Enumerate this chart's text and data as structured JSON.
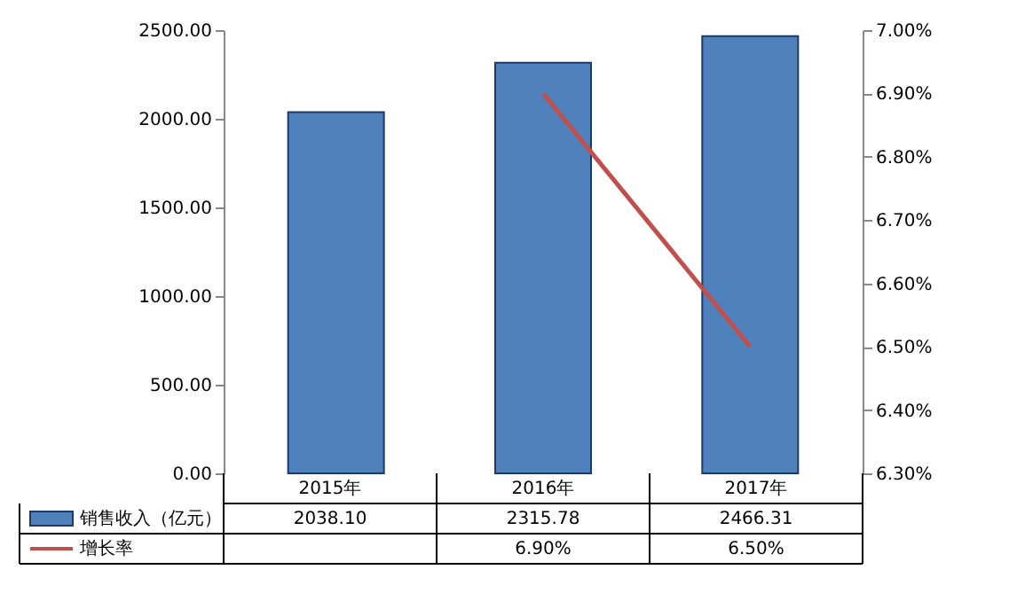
{
  "chart_data": {
    "type": "bar",
    "categories": [
      "2015年",
      "2016年",
      "2017年"
    ],
    "series": [
      {
        "name": "销售收入（亿元）",
        "color": "#4f81bd",
        "values": [
          2038.1,
          2315.78,
          2466.31
        ],
        "value_labels": [
          "2038.10",
          "2315.78",
          "2466.31"
        ]
      },
      {
        "name": "增长率",
        "type": "line",
        "axis": "y2",
        "color": "#c0504d",
        "values": [
          null,
          6.9,
          6.5
        ],
        "value_labels": [
          null,
          "6.90%",
          "6.50%"
        ]
      }
    ],
    "ylim": [
      0,
      2500
    ],
    "yticks": [
      {
        "value": 0,
        "label": "0.00"
      },
      {
        "value": 500,
        "label": "500.00"
      },
      {
        "value": 1000,
        "label": "1000.00"
      },
      {
        "value": 1500,
        "label": "1500.00"
      },
      {
        "value": 2000,
        "label": "2000.00"
      },
      {
        "value": 2500,
        "label": "2500.00"
      }
    ],
    "y2lim": [
      6.3,
      7.0
    ],
    "y2ticks": [
      {
        "value": 6.3,
        "label": "6.30%"
      },
      {
        "value": 6.4,
        "label": "6.40%"
      },
      {
        "value": 6.5,
        "label": "6.50%"
      },
      {
        "value": 6.6,
        "label": "6.60%"
      },
      {
        "value": 6.7,
        "label": "6.70%"
      },
      {
        "value": 6.8,
        "label": "6.80%"
      },
      {
        "value": 6.9,
        "label": "6.90%"
      },
      {
        "value": 7.0,
        "label": "7.00%"
      }
    ],
    "legend": "bottom left",
    "grid": false
  }
}
